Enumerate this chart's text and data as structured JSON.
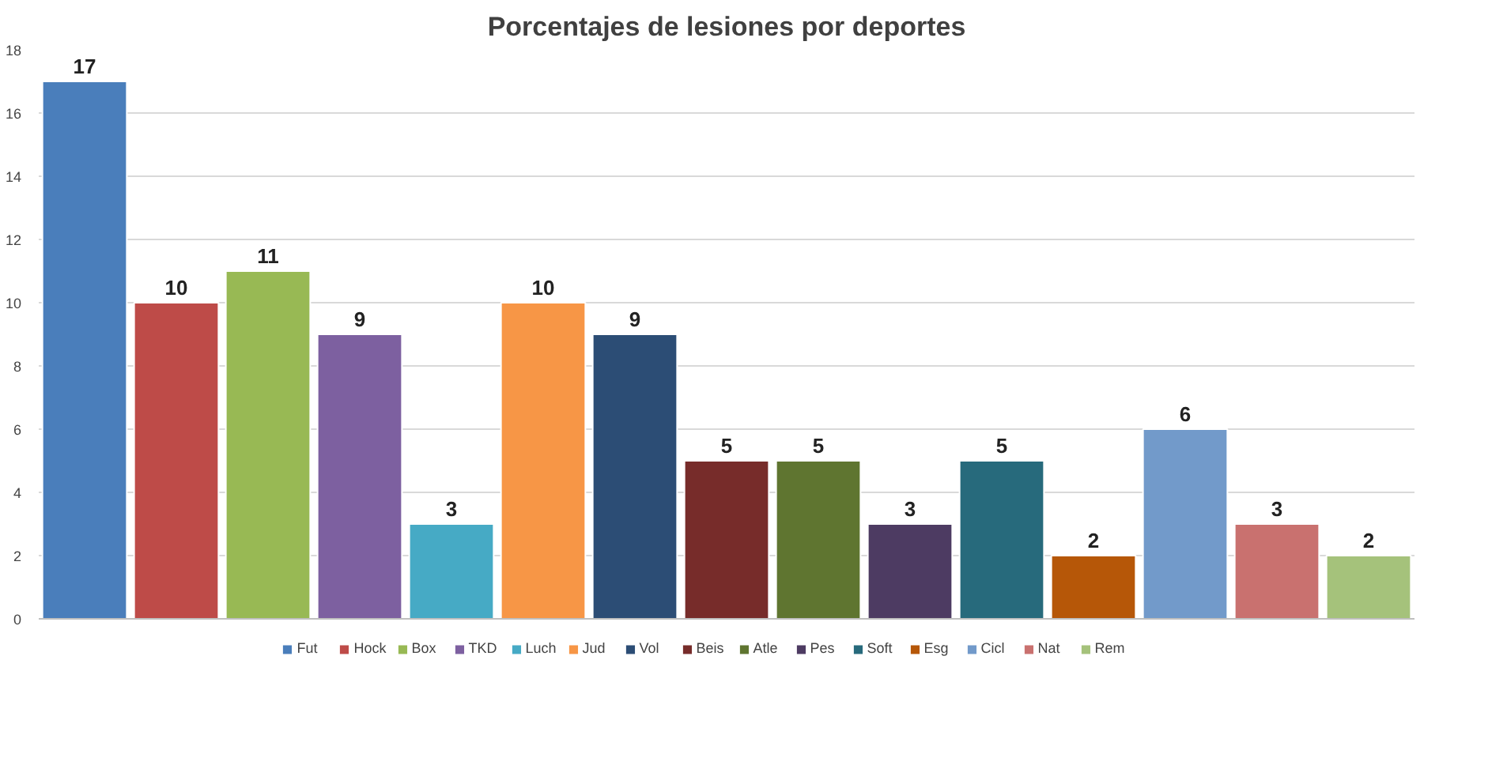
{
  "chart_data": {
    "type": "bar",
    "title": "Porcentajes de lesiones por deportes",
    "categories": [
      null,
      null,
      null,
      null,
      null,
      null,
      null,
      null,
      null,
      null,
      null,
      null,
      null,
      null,
      null
    ],
    "series": [
      {
        "name": "Fut",
        "color": "#4a7ebb",
        "values": [
          17,
          null,
          null,
          null,
          null,
          null,
          null,
          null,
          null,
          null,
          null,
          null,
          null,
          null,
          null
        ]
      },
      {
        "name": "Hock",
        "color": "#be4b48",
        "values": [
          null,
          10,
          null,
          null,
          null,
          null,
          null,
          null,
          null,
          null,
          null,
          null,
          null,
          null,
          null
        ]
      },
      {
        "name": "Box",
        "color": "#98b954",
        "values": [
          null,
          null,
          11,
          null,
          null,
          null,
          null,
          null,
          null,
          null,
          null,
          null,
          null,
          null,
          null
        ]
      },
      {
        "name": "TKD",
        "color": "#7d60a0",
        "values": [
          null,
          null,
          null,
          9,
          null,
          null,
          null,
          null,
          null,
          null,
          null,
          null,
          null,
          null,
          null
        ]
      },
      {
        "name": "Luch",
        "color": "#46aac5",
        "values": [
          null,
          null,
          null,
          null,
          3,
          null,
          null,
          null,
          null,
          null,
          null,
          null,
          null,
          null,
          null
        ]
      },
      {
        "name": "Jud",
        "color": "#f79646",
        "values": [
          null,
          null,
          null,
          null,
          null,
          10,
          null,
          null,
          null,
          null,
          null,
          null,
          null,
          null,
          null
        ]
      },
      {
        "name": "Vol",
        "color": "#2c4d75",
        "values": [
          null,
          null,
          null,
          null,
          null,
          null,
          9,
          null,
          null,
          null,
          null,
          null,
          null,
          null,
          null
        ]
      },
      {
        "name": "Beis",
        "color": "#772c2a",
        "values": [
          null,
          null,
          null,
          null,
          null,
          null,
          null,
          5,
          null,
          null,
          null,
          null,
          null,
          null,
          null
        ]
      },
      {
        "name": "Atle",
        "color": "#5f7530",
        "values": [
          null,
          null,
          null,
          null,
          null,
          null,
          null,
          null,
          5,
          null,
          null,
          null,
          null,
          null,
          null
        ]
      },
      {
        "name": "Pes",
        "color": "#4d3b62",
        "values": [
          null,
          null,
          null,
          null,
          null,
          null,
          null,
          null,
          null,
          3,
          null,
          null,
          null,
          null,
          null
        ]
      },
      {
        "name": "Soft",
        "color": "#276a7c",
        "values": [
          null,
          null,
          null,
          null,
          null,
          null,
          null,
          null,
          null,
          null,
          5,
          null,
          null,
          null,
          null
        ]
      },
      {
        "name": "Esg",
        "color": "#b65708",
        "values": [
          null,
          null,
          null,
          null,
          null,
          null,
          null,
          null,
          null,
          null,
          null,
          2,
          null,
          null,
          null
        ]
      },
      {
        "name": "Cicl",
        "color": "#729aca",
        "values": [
          null,
          null,
          null,
          null,
          null,
          null,
          null,
          null,
          null,
          null,
          null,
          null,
          6,
          null,
          null
        ]
      },
      {
        "name": "Nat",
        "color": "#c9716f",
        "values": [
          null,
          null,
          null,
          null,
          null,
          null,
          null,
          null,
          null,
          null,
          null,
          null,
          null,
          3,
          null
        ]
      },
      {
        "name": "Rem",
        "color": "#a5c27b",
        "values": [
          null,
          null,
          null,
          null,
          null,
          null,
          null,
          null,
          null,
          null,
          null,
          null,
          null,
          null,
          2
        ]
      }
    ],
    "ylim": [
      0,
      18
    ],
    "yticks": [
      0,
      2,
      4,
      6,
      8,
      10,
      12,
      14,
      16,
      18
    ],
    "grid": "y",
    "legend": "bottom",
    "data_labels": true
  }
}
